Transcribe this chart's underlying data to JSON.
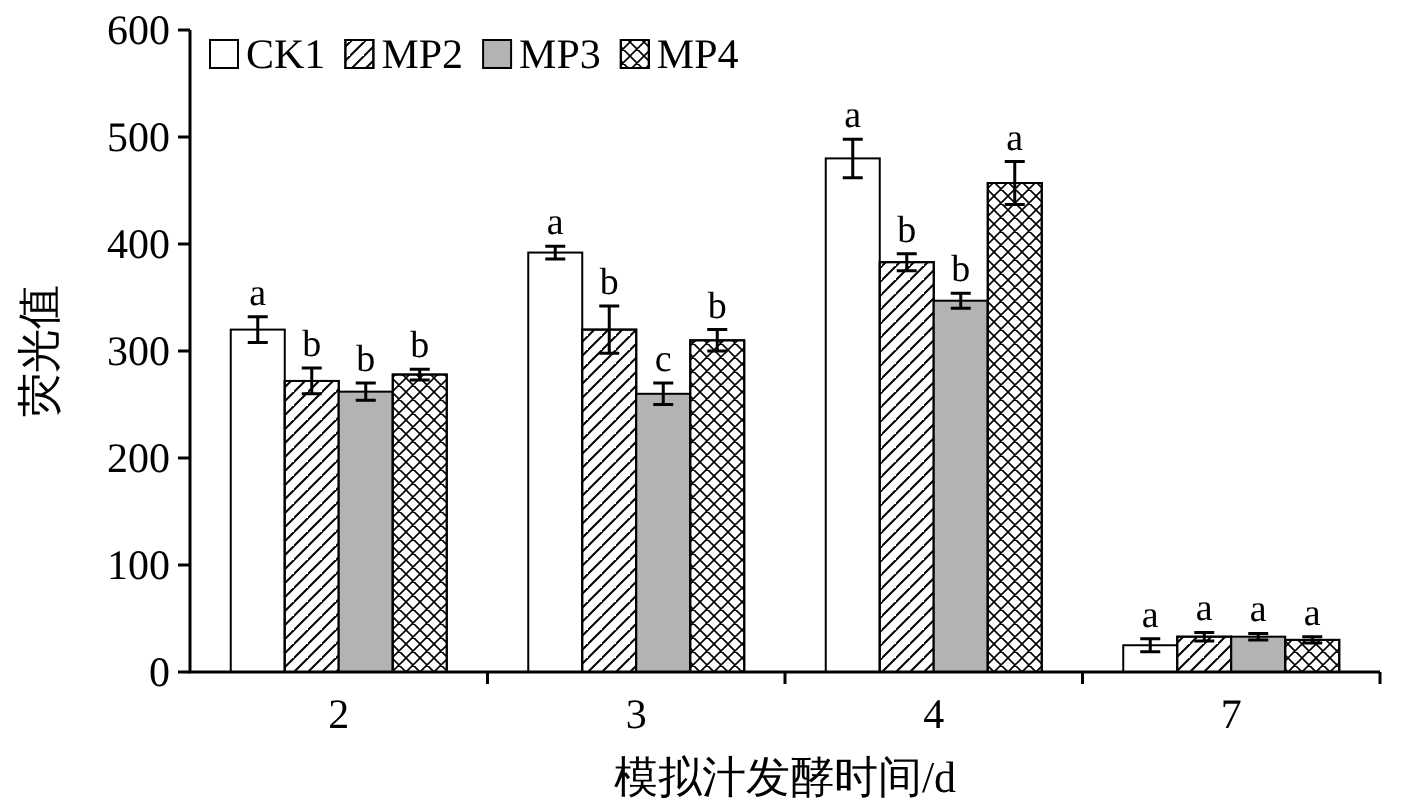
{
  "chart_data": {
    "type": "bar",
    "xlabel": "模拟汁发酵时间/d",
    "ylabel": "荧光值",
    "categories": [
      "2",
      "3",
      "4",
      "7"
    ],
    "ylim": [
      0,
      600
    ],
    "yticks": [
      0,
      100,
      200,
      300,
      400,
      500,
      600
    ],
    "legend": "top left",
    "series": [
      {
        "name": "CK1",
        "color": "#ffffff",
        "values": [
          320,
          392,
          480,
          25
        ],
        "errors": [
          12,
          6,
          18,
          6
        ],
        "value_labels": [
          "a",
          "a",
          "a",
          "a"
        ]
      },
      {
        "name": "MP2",
        "color": "#ffffff",
        "values": [
          272,
          320,
          383,
          33
        ],
        "errors": [
          12,
          22,
          8,
          4
        ],
        "value_labels": [
          "b",
          "b",
          "b",
          "a"
        ]
      },
      {
        "name": "MP3",
        "color": "#b3b3b3",
        "values": [
          262,
          260,
          347,
          33
        ],
        "errors": [
          8,
          10,
          7,
          3
        ],
        "value_labels": [
          "b",
          "c",
          "b",
          "a"
        ]
      },
      {
        "name": "MP4",
        "color": "#ffffff",
        "values": [
          278,
          310,
          457,
          30
        ],
        "errors": [
          5,
          10,
          20,
          3
        ],
        "value_labels": [
          "b",
          "b",
          "a",
          "a"
        ]
      }
    ]
  }
}
